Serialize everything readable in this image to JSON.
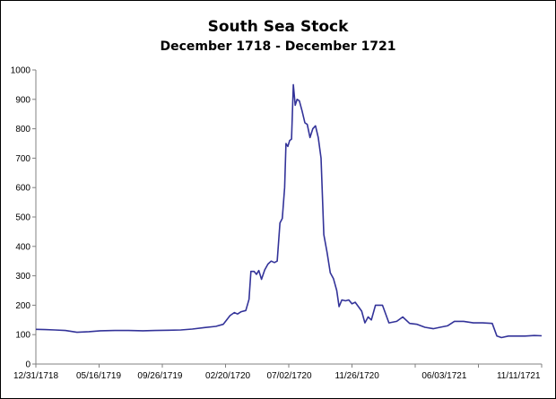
{
  "chart_data": {
    "type": "line",
    "title": "South Sea Stock",
    "subtitle": "December 1718 - December 1721",
    "xlabel": "",
    "ylabel": "",
    "ylim": [
      0,
      1000
    ],
    "yticks": [
      0,
      100,
      200,
      300,
      400,
      500,
      600,
      700,
      800,
      900,
      1000
    ],
    "xlim": [
      "12/31/1718",
      "12/31/1721"
    ],
    "xtick_labels": [
      "12/31/1718",
      "05/16/1719",
      "09/26/1719",
      "02/20/1720",
      "07/02/1720",
      "11/26/1720",
      "06/03/1721",
      "11/11/1721"
    ],
    "grid": false,
    "line_color": "#333399",
    "series": [
      {
        "points": [
          [
            "12/31/1718",
            118
          ],
          [
            "01/20/1719",
            117
          ],
          [
            "02/10/1719",
            116
          ],
          [
            "03/05/1719",
            114
          ],
          [
            "03/30/1719",
            108
          ],
          [
            "04/25/1719",
            110
          ],
          [
            "05/20/1719",
            113
          ],
          [
            "06/20/1719",
            114
          ],
          [
            "07/20/1719",
            114
          ],
          [
            "08/20/1719",
            113
          ],
          [
            "09/15/1719",
            114
          ],
          [
            "10/15/1719",
            115
          ],
          [
            "11/10/1719",
            116
          ],
          [
            "12/05/1719",
            119
          ],
          [
            "01/01/1720",
            124
          ],
          [
            "01/25/1720",
            128
          ],
          [
            "02/10/1720",
            135
          ],
          [
            "02/25/1720",
            165
          ],
          [
            "03/05/1720",
            175
          ],
          [
            "03/12/1720",
            170
          ],
          [
            "03/20/1720",
            178
          ],
          [
            "03/30/1720",
            182
          ],
          [
            "04/06/1720",
            220
          ],
          [
            "04/10/1720",
            315
          ],
          [
            "04/17/1720",
            315
          ],
          [
            "04/22/1720",
            305
          ],
          [
            "04/27/1720",
            318
          ],
          [
            "05/03/1720",
            288
          ],
          [
            "05/10/1720",
            320
          ],
          [
            "05/17/1720",
            340
          ],
          [
            "05/24/1720",
            350
          ],
          [
            "05/31/1720",
            345
          ],
          [
            "06/06/1720",
            350
          ],
          [
            "06/12/1720",
            480
          ],
          [
            "06/17/1720",
            495
          ],
          [
            "06/22/1720",
            600
          ],
          [
            "06/25/1720",
            750
          ],
          [
            "06/29/1720",
            740
          ],
          [
            "07/03/1720",
            760
          ],
          [
            "07/07/1720",
            765
          ],
          [
            "07/11/1720",
            950
          ],
          [
            "07/15/1720",
            880
          ],
          [
            "07/19/1720",
            900
          ],
          [
            "07/24/1720",
            895
          ],
          [
            "07/30/1720",
            860
          ],
          [
            "08/05/1720",
            820
          ],
          [
            "08/10/1720",
            815
          ],
          [
            "08/16/1720",
            770
          ],
          [
            "08/22/1720",
            800
          ],
          [
            "08/28/1720",
            810
          ],
          [
            "09/03/1720",
            770
          ],
          [
            "09/09/1720",
            700
          ],
          [
            "09/15/1720",
            440
          ],
          [
            "09/22/1720",
            380
          ],
          [
            "09/29/1720",
            310
          ],
          [
            "10/06/1720",
            290
          ],
          [
            "10/13/1720",
            250
          ],
          [
            "10/18/1720",
            195
          ],
          [
            "10/24/1720",
            218
          ],
          [
            "11/01/1720",
            215
          ],
          [
            "11/08/1720",
            218
          ],
          [
            "11/15/1720",
            205
          ],
          [
            "11/22/1720",
            210
          ],
          [
            "11/29/1720",
            195
          ],
          [
            "12/06/1720",
            180
          ],
          [
            "12/13/1720",
            140
          ],
          [
            "12/20/1720",
            160
          ],
          [
            "12/27/1720",
            150
          ],
          [
            "01/05/1721",
            200
          ],
          [
            "01/20/1721",
            200
          ],
          [
            "02/03/1721",
            140
          ],
          [
            "02/20/1721",
            145
          ],
          [
            "03/05/1721",
            160
          ],
          [
            "03/20/1721",
            138
          ],
          [
            "04/05/1721",
            135
          ],
          [
            "04/22/1721",
            125
          ],
          [
            "05/10/1721",
            120
          ],
          [
            "05/25/1721",
            125
          ],
          [
            "06/10/1721",
            130
          ],
          [
            "06/25/1721",
            145
          ],
          [
            "07/15/1721",
            145
          ],
          [
            "08/05/1721",
            140
          ],
          [
            "08/25/1721",
            140
          ],
          [
            "09/15/1721",
            138
          ],
          [
            "09/25/1721",
            95
          ],
          [
            "10/05/1721",
            90
          ],
          [
            "10/20/1721",
            95
          ],
          [
            "11/05/1721",
            95
          ],
          [
            "11/25/1721",
            95
          ],
          [
            "12/15/1721",
            97
          ],
          [
            "12/31/1721",
            96
          ]
        ]
      }
    ]
  }
}
